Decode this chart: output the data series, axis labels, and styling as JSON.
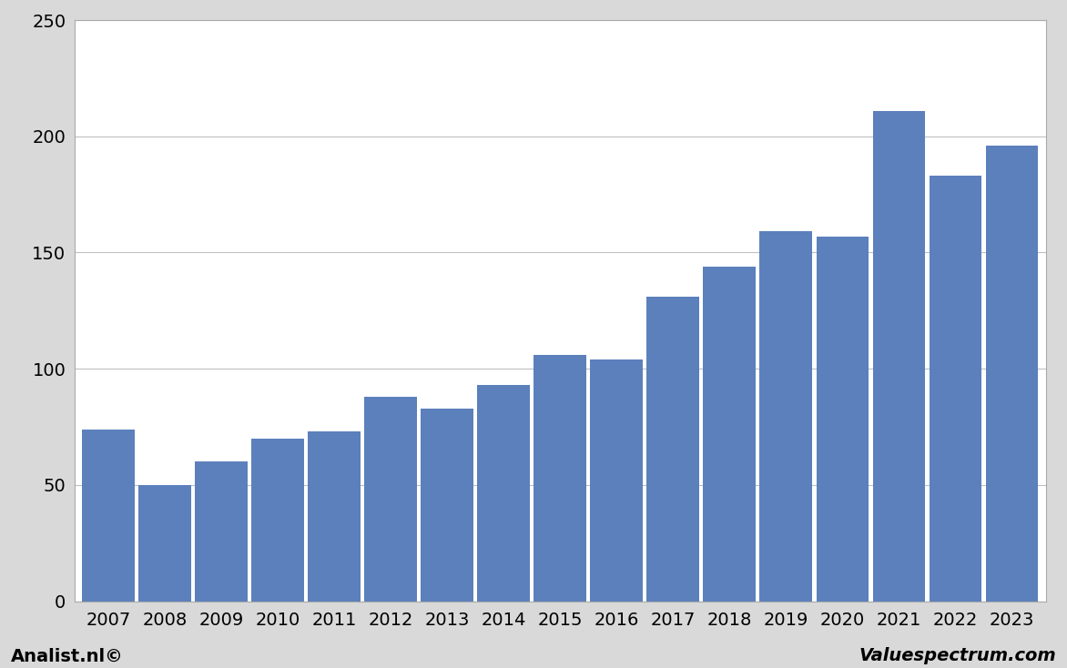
{
  "categories": [
    "2007",
    "2008",
    "2009",
    "2010",
    "2011",
    "2012",
    "2013",
    "2014",
    "2015",
    "2016",
    "2017",
    "2018",
    "2019",
    "2020",
    "2021",
    "2022",
    "2023"
  ],
  "values": [
    74,
    50,
    60,
    70,
    73,
    88,
    83,
    93,
    106,
    104,
    131,
    144,
    159,
    157,
    211,
    183,
    196
  ],
  "bar_color": "#5b80bc",
  "background_color": "#d9d9d9",
  "plot_bg_color": "#ffffff",
  "ylim": [
    0,
    250
  ],
  "yticks": [
    0,
    50,
    100,
    150,
    200,
    250
  ],
  "grid_color": "#c0c0c0",
  "footer_left": "Analist.nl©",
  "footer_right": "Valuespectrum.com",
  "footer_fontsize": 14,
  "tick_fontsize": 14
}
